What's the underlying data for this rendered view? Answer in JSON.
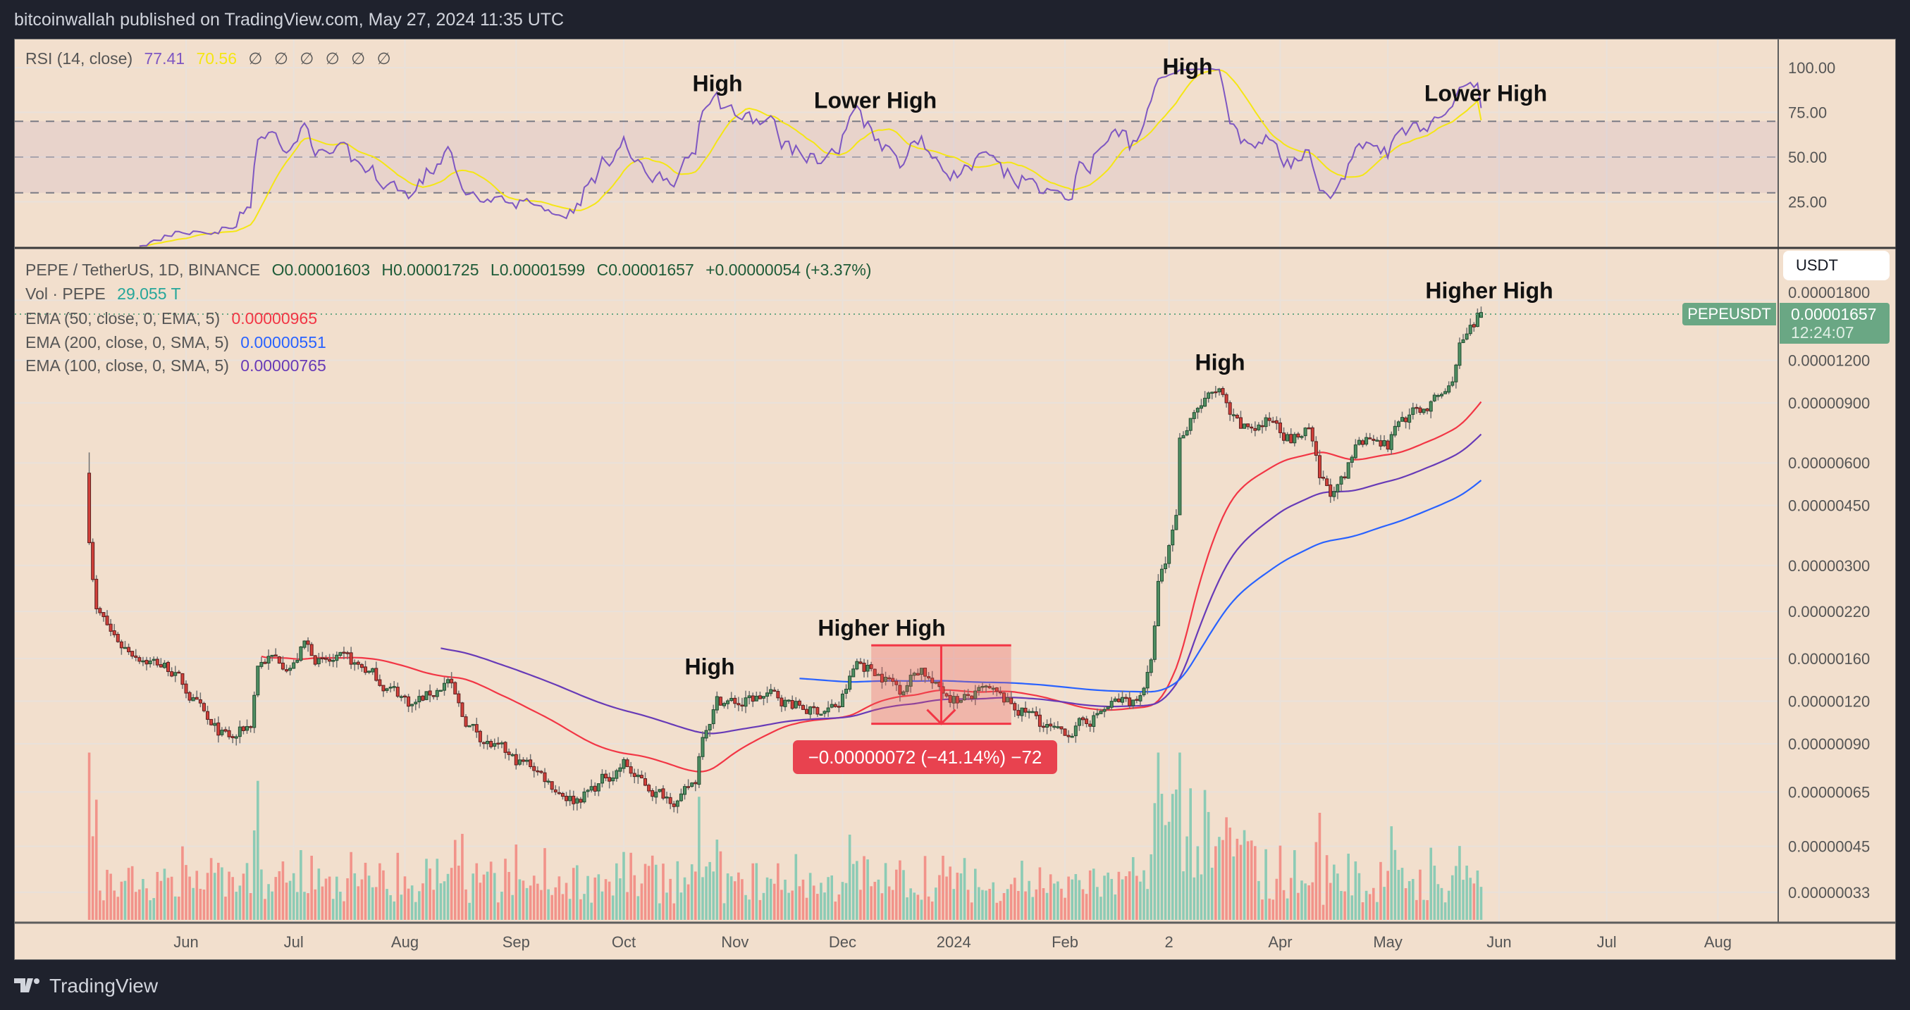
{
  "header": {
    "published": "bitcoinwallah published on TradingView.com, May 27, 2024 11:35 UTC"
  },
  "rsi_legend": {
    "name": "RSI (14, close)",
    "rsi_value": "77.41",
    "ma_value": "70.56",
    "empty_values": [
      "∅",
      "∅",
      "∅",
      "∅",
      "∅",
      "∅"
    ],
    "rsi_color": "#7e57c2",
    "ma_color": "#f5e614"
  },
  "price_legend": {
    "symbol": "PEPE / TetherUS, 1D, BINANCE",
    "open": "O0.00001603",
    "high": "H0.00001725",
    "low": "L0.00001599",
    "close": "C0.00001657",
    "change": "+0.00000054 (+3.37%)",
    "volume_label": "Vol · PEPE",
    "volume_value": "29.055 T",
    "ema50_label": "EMA (50, close, 0, EMA, 5)",
    "ema50_value": "0.00000965",
    "ema50_color": "#f23645",
    "ema200_label": "EMA (200, close, 0, SMA, 5)",
    "ema200_value": "0.00000551",
    "ema200_color": "#2962ff",
    "ema100_label": "EMA (100, close, 0, SMA, 5)",
    "ema100_value": "0.00000765",
    "ema100_color": "#673ab7"
  },
  "price_axis": {
    "currency": "USDT",
    "symbol_tag": "PEPEUSDT",
    "last_price": "0.00001657",
    "countdown": "12:24:07"
  },
  "measure": {
    "label": "−0.00000072 (−41.14%) −72"
  },
  "annotations_rsi": [
    "High",
    "Lower High",
    "High",
    "Lower High"
  ],
  "annotations_price": [
    "Higher High",
    "High",
    "Higher High",
    "High"
  ],
  "footer": {
    "brand": "TradingView"
  },
  "chart_data": [
    {
      "type": "candlestick",
      "title": "PEPE / TetherUS, 1D, BINANCE",
      "y_scale": "log",
      "y_ticks": [
        "0.00001800",
        "0.00001200",
        "0.00000900",
        "0.00000600",
        "0.00000450",
        "0.00000300",
        "0.00000220",
        "0.00000160",
        "0.00000120",
        "0.00000090",
        "0.00000065",
        "0.00000045",
        "0.00000033"
      ],
      "x_ticks": [
        {
          "label": "Jun",
          "date": "2023-06-01"
        },
        {
          "label": "Jul",
          "date": "2023-07-01"
        },
        {
          "label": "Aug",
          "date": "2023-08-01"
        },
        {
          "label": "Sep",
          "date": "2023-09-01"
        },
        {
          "label": "Oct",
          "date": "2023-10-01"
        },
        {
          "label": "Nov",
          "date": "2023-11-01"
        },
        {
          "label": "Dec",
          "date": "2023-12-01"
        },
        {
          "label": "2024",
          "date": "2024-01-01"
        },
        {
          "label": "Feb",
          "date": "2024-02-01"
        },
        {
          "label": "2",
          "date": "2024-03-01"
        },
        {
          "label": "Apr",
          "date": "2024-04-01"
        },
        {
          "label": "May",
          "date": "2024-05-01"
        },
        {
          "label": "Jun",
          "date": "2024-06-01"
        },
        {
          "label": "Jul",
          "date": "2024-07-01"
        },
        {
          "label": "Aug",
          "date": "2024-08-01"
        }
      ],
      "close_path": [
        [
          "2023-05-05",
          3.66e-06
        ],
        [
          "2023-05-07",
          2.25e-06
        ],
        [
          "2023-05-11",
          1.91e-06
        ],
        [
          "2023-05-14",
          1.76e-06
        ],
        [
          "2023-05-21",
          1.61e-06
        ],
        [
          "2023-05-28",
          1.49e-06
        ],
        [
          "2023-06-03",
          1.21e-06
        ],
        [
          "2023-06-08",
          9.85e-07
        ],
        [
          "2023-06-14",
          9.2e-07
        ],
        [
          "2023-06-19",
          1.03e-06
        ],
        [
          "2023-06-21",
          1.55e-06
        ],
        [
          "2023-06-24",
          1.61e-06
        ],
        [
          "2023-07-01",
          1.55e-06
        ],
        [
          "2023-07-04",
          1.76e-06
        ],
        [
          "2023-07-09",
          1.55e-06
        ],
        [
          "2023-07-16",
          1.55e-06
        ],
        [
          "2023-07-21",
          1.49e-06
        ],
        [
          "2023-07-28",
          1.31e-06
        ],
        [
          "2023-08-03",
          1.18e-06
        ],
        [
          "2023-08-09",
          1.27e-06
        ],
        [
          "2023-08-13",
          1.39e-06
        ],
        [
          "2023-08-17",
          1.07e-06
        ],
        [
          "2023-08-24",
          9.1e-07
        ],
        [
          "2023-08-31",
          8e-07
        ],
        [
          "2023-09-06",
          7.7e-07
        ],
        [
          "2023-09-12",
          6.7e-07
        ],
        [
          "2023-09-17",
          6.2e-07
        ],
        [
          "2023-09-22",
          6.6e-07
        ],
        [
          "2023-09-27",
          7.3e-07
        ],
        [
          "2023-10-01",
          7.9e-07
        ],
        [
          "2023-10-05",
          7e-07
        ],
        [
          "2023-10-10",
          6.5e-07
        ],
        [
          "2023-10-17",
          6.2e-07
        ],
        [
          "2023-10-21",
          7e-07
        ],
        [
          "2023-10-23",
          9.85e-07
        ],
        [
          "2023-10-27",
          1.21e-06
        ],
        [
          "2023-11-03",
          1.18e-06
        ],
        [
          "2023-11-10",
          1.25e-06
        ],
        [
          "2023-11-17",
          1.18e-06
        ],
        [
          "2023-11-23",
          1.12e-06
        ],
        [
          "2023-11-30",
          1.16e-06
        ],
        [
          "2023-12-05",
          1.55e-06
        ],
        [
          "2023-12-10",
          1.49e-06
        ],
        [
          "2023-12-17",
          1.31e-06
        ],
        [
          "2023-12-23",
          1.52e-06
        ],
        [
          "2023-12-27",
          1.31e-06
        ],
        [
          "2024-01-03",
          1.21e-06
        ],
        [
          "2024-01-10",
          1.27e-06
        ],
        [
          "2024-01-17",
          1.16e-06
        ],
        [
          "2024-01-24",
          1.07e-06
        ],
        [
          "2024-01-30",
          9.45e-07
        ],
        [
          "2024-02-06",
          1.03e-06
        ],
        [
          "2024-02-11",
          1.12e-06
        ],
        [
          "2024-02-15",
          1.18e-06
        ],
        [
          "2024-02-21",
          1.21e-06
        ],
        [
          "2024-02-25",
          1.52e-06
        ],
        [
          "2024-02-27",
          2.63e-06
        ],
        [
          "2024-02-29",
          2.98e-06
        ],
        [
          "2024-03-03",
          4.32e-06
        ],
        [
          "2024-03-04",
          7.07e-06
        ],
        [
          "2024-03-08",
          8.7e-06
        ],
        [
          "2024-03-11",
          9.07e-06
        ],
        [
          "2024-03-15",
          9.8e-06
        ],
        [
          "2024-03-18",
          8.02e-06
        ],
        [
          "2024-03-21",
          7.4e-06
        ],
        [
          "2024-03-26",
          7.7e-06
        ],
        [
          "2024-03-31",
          8.02e-06
        ],
        [
          "2024-04-04",
          7.07e-06
        ],
        [
          "2024-04-09",
          7.4e-06
        ],
        [
          "2024-04-12",
          5.26e-06
        ],
        [
          "2024-04-16",
          4.85e-06
        ],
        [
          "2024-04-19",
          5.26e-06
        ],
        [
          "2024-04-23",
          7.07e-06
        ],
        [
          "2024-04-28",
          7.4e-06
        ],
        [
          "2024-05-01",
          6.75e-06
        ],
        [
          "2024-05-04",
          8.02e-06
        ],
        [
          "2024-05-09",
          8.4e-06
        ],
        [
          "2024-05-14",
          9.07e-06
        ],
        [
          "2024-05-18",
          9.8e-06
        ],
        [
          "2024-05-20",
          1.16e-05
        ],
        [
          "2024-05-21",
          1.31e-05
        ],
        [
          "2024-05-25",
          1.48e-05
        ],
        [
          "2024-05-27",
          1.657e-05
        ]
      ],
      "last_candle": {
        "open": 1.603e-05,
        "high": 1.725e-05,
        "low": 1.599e-05,
        "close": 1.657e-05
      },
      "series": [
        {
          "name": "EMA (50, close, 0, EMA, 5)",
          "color": "#f23645",
          "last": 9.65e-06
        },
        {
          "name": "EMA (100, close, 0, SMA, 5)",
          "color": "#673ab7",
          "last": 7.65e-06
        },
        {
          "name": "EMA (200, close, 0, SMA, 5)",
          "color": "#2962ff",
          "last": 5.51e-06
        }
      ],
      "measure": {
        "from_date": "2023-12-09",
        "to_date": "2024-01-17",
        "from_price": 1.75e-06,
        "to_price": 1.03e-06,
        "change": "−41.14%"
      },
      "colors": {
        "up": "#4f8f63",
        "down": "#d3403a",
        "volume_up": "#8ccbb5",
        "volume_down": "#f2938a",
        "background": "#f2dfcd"
      }
    },
    {
      "type": "line",
      "title": "RSI (14, close)",
      "y_ticks": [
        "100.00",
        "75.00",
        "50.00",
        "25.00"
      ],
      "ylim": [
        0,
        110
      ],
      "bands": {
        "upper": 70,
        "middle": 50,
        "lower": 30
      },
      "last_rsi": 77.41,
      "last_ma": 70.56
    }
  ]
}
